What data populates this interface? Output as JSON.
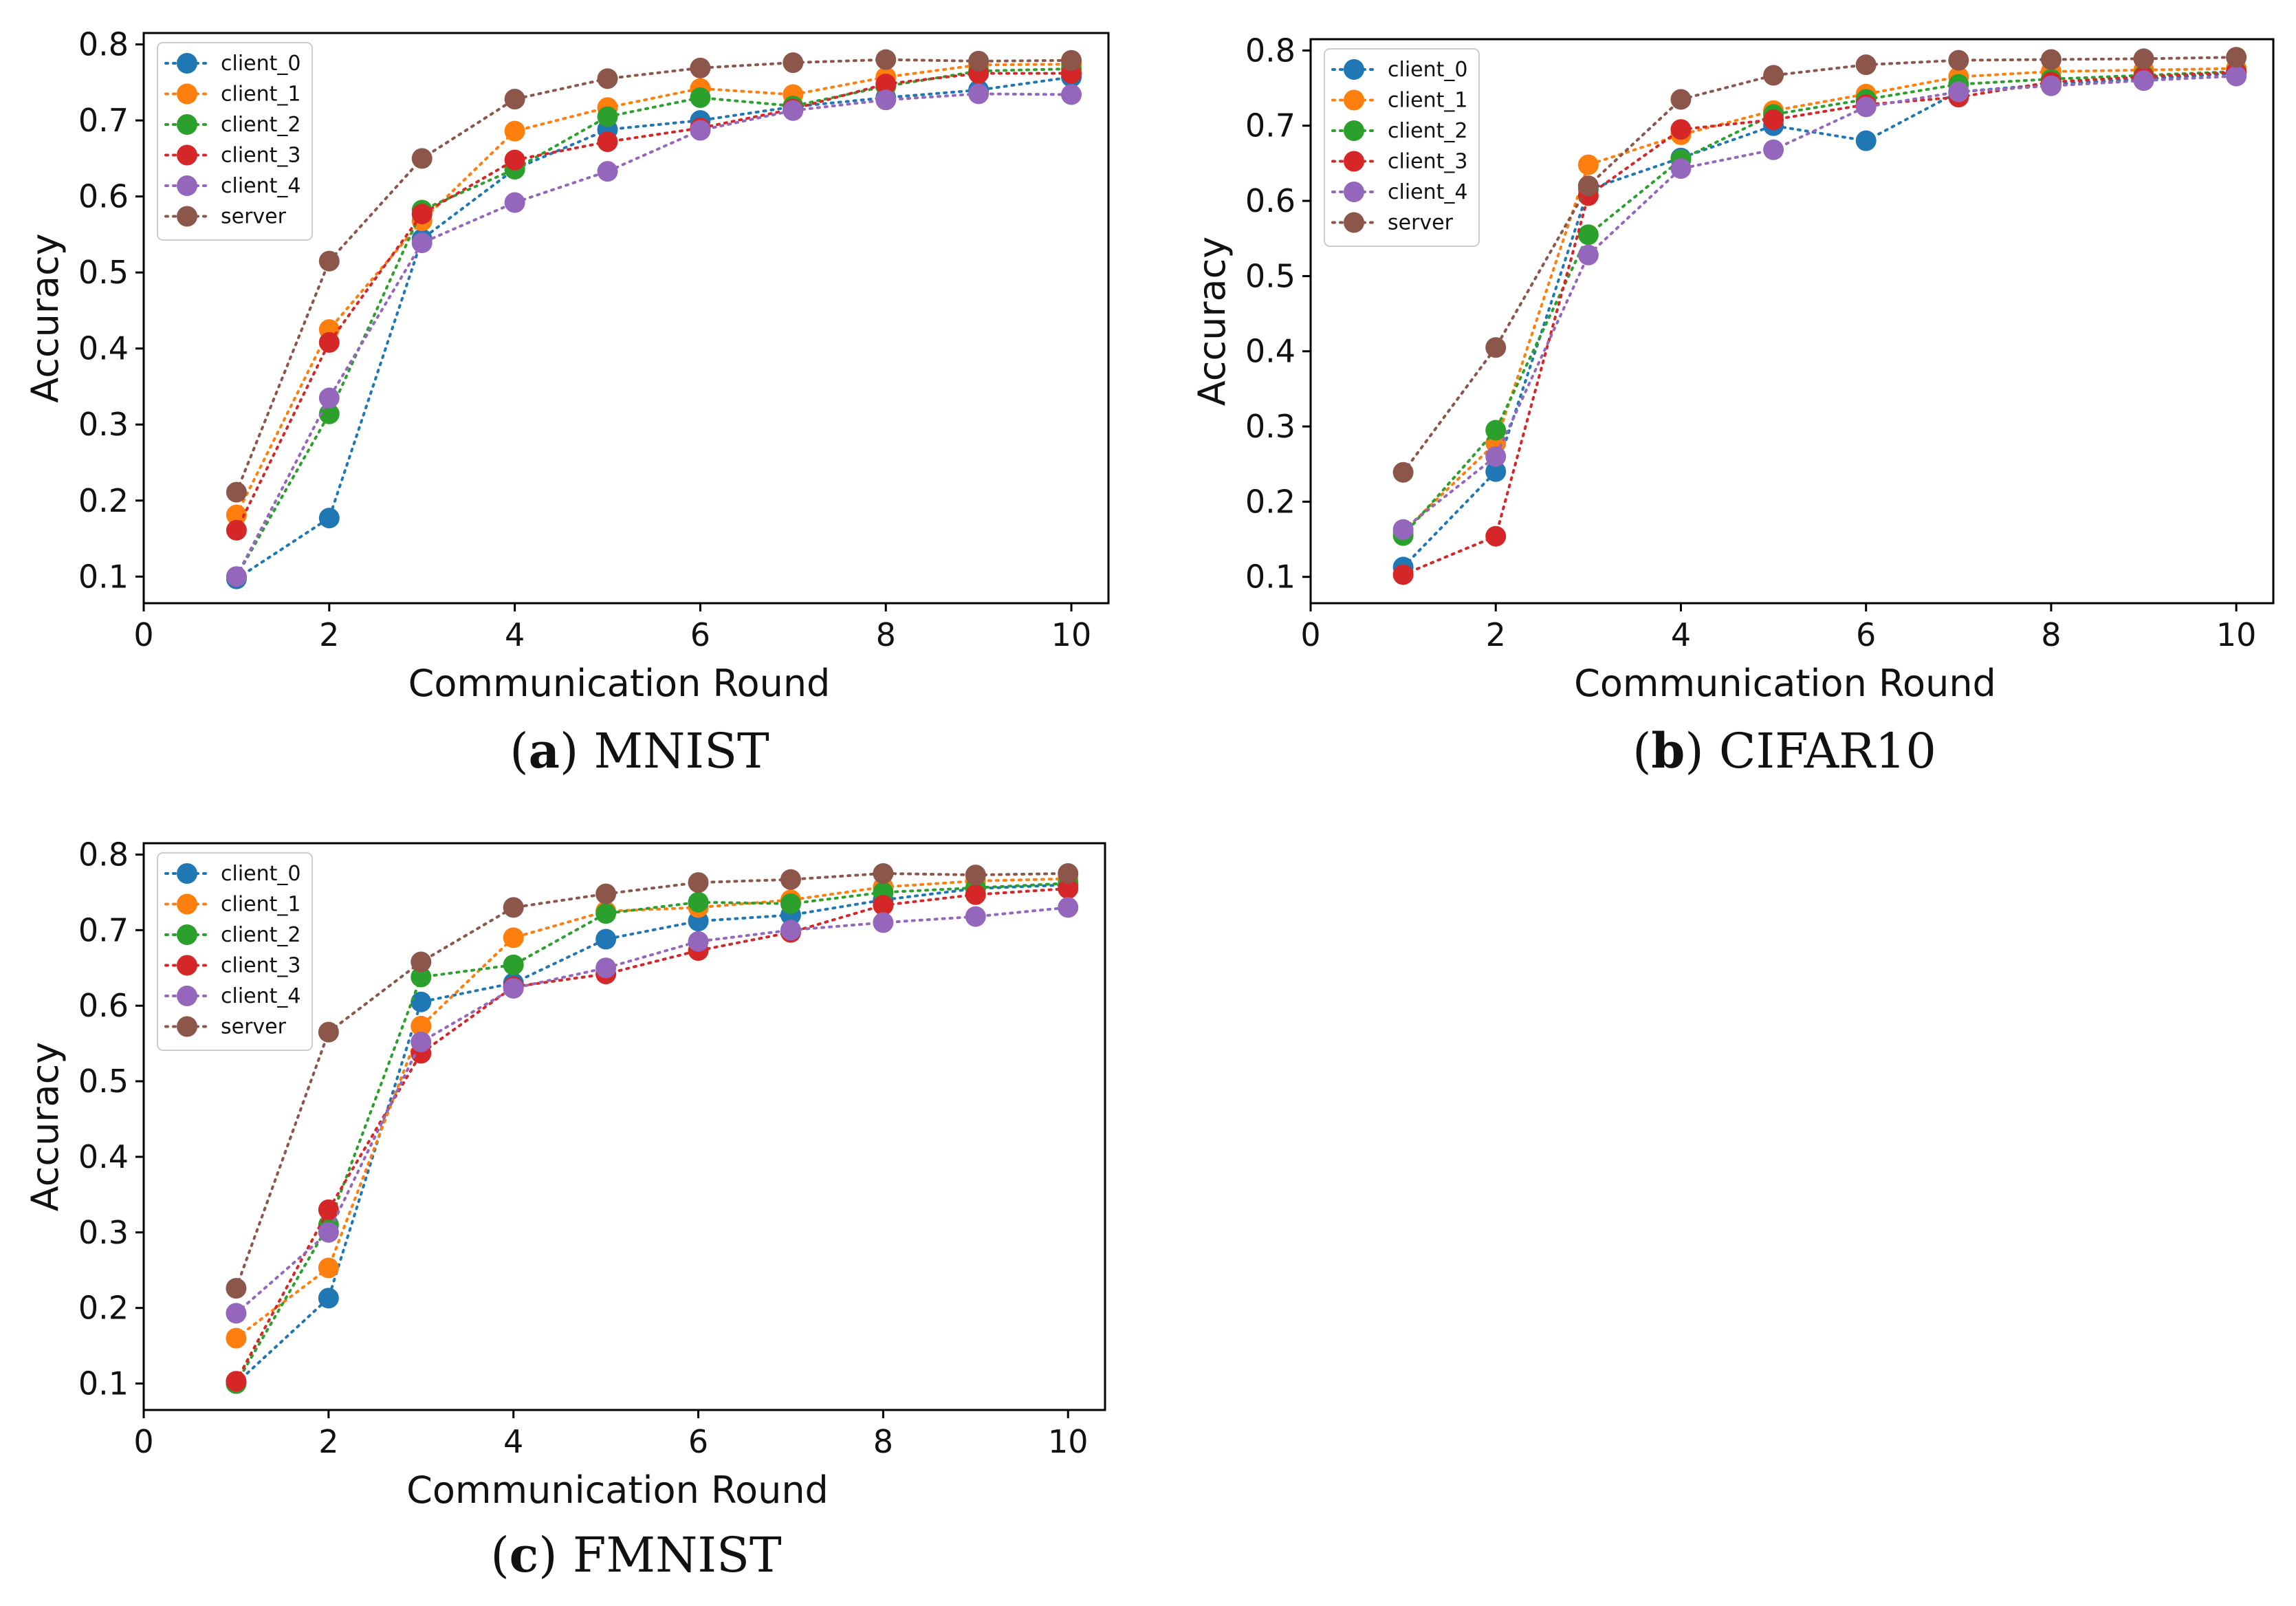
{
  "chart_data": [
    {
      "type": "line",
      "title": "",
      "caption": {
        "letter": "a",
        "text": "MNIST"
      },
      "xlabel": "Communication Round",
      "ylabel": "Accuracy",
      "xlim": [
        0,
        10.4
      ],
      "ylim": [
        0.065,
        0.815
      ],
      "xticks": [
        0,
        2,
        4,
        6,
        8,
        10
      ],
      "yticks": [
        0.1,
        0.2,
        0.3,
        0.4,
        0.5,
        0.6,
        0.7,
        0.8
      ],
      "legend_position": "top-left",
      "x": [
        1,
        2,
        3,
        4,
        5,
        6,
        7,
        8,
        9,
        10
      ],
      "series": [
        {
          "name": "client_0",
          "color": "#1f77b4",
          "values": [
            0.097,
            0.177,
            0.544,
            0.636,
            0.688,
            0.7,
            0.718,
            0.73,
            0.74,
            0.757
          ]
        },
        {
          "name": "client_1",
          "color": "#ff7f0e",
          "values": [
            0.181,
            0.425,
            0.568,
            0.686,
            0.717,
            0.742,
            0.734,
            0.757,
            0.773,
            0.774
          ]
        },
        {
          "name": "client_2",
          "color": "#2ca02c",
          "values": [
            0.1,
            0.314,
            0.582,
            0.636,
            0.705,
            0.73,
            0.719,
            0.745,
            0.765,
            0.768
          ]
        },
        {
          "name": "client_3",
          "color": "#d62728",
          "values": [
            0.161,
            0.408,
            0.577,
            0.648,
            0.672,
            0.69,
            0.715,
            0.748,
            0.762,
            0.762
          ]
        },
        {
          "name": "client_4",
          "color": "#9467bd",
          "values": [
            0.1,
            0.335,
            0.539,
            0.592,
            0.633,
            0.687,
            0.713,
            0.727,
            0.735,
            0.734
          ]
        },
        {
          "name": "server",
          "color": "#8c564b",
          "values": [
            0.211,
            0.515,
            0.65,
            0.728,
            0.755,
            0.769,
            0.776,
            0.78,
            0.778,
            0.779
          ]
        }
      ]
    },
    {
      "type": "line",
      "title": "",
      "caption": {
        "letter": "b",
        "text": "CIFAR10"
      },
      "xlabel": "Communication Round",
      "ylabel": "Accuracy",
      "xlim": [
        0,
        10.4
      ],
      "ylim": [
        0.065,
        0.815
      ],
      "xticks": [
        0,
        2,
        4,
        6,
        8,
        10
      ],
      "yticks": [
        0.1,
        0.2,
        0.3,
        0.4,
        0.5,
        0.6,
        0.7,
        0.8
      ],
      "legend_position": "top-left",
      "x": [
        1,
        2,
        3,
        4,
        5,
        6,
        7,
        8,
        9,
        10
      ],
      "series": [
        {
          "name": "client_0",
          "color": "#1f77b4",
          "values": [
            0.113,
            0.24,
            0.615,
            0.657,
            0.7,
            0.68,
            0.745,
            0.755,
            0.762,
            0.77
          ]
        },
        {
          "name": "client_1",
          "color": "#ff7f0e",
          "values": [
            0.16,
            0.278,
            0.648,
            0.688,
            0.72,
            0.742,
            0.765,
            0.772,
            0.774,
            0.776
          ]
        },
        {
          "name": "client_2",
          "color": "#2ca02c",
          "values": [
            0.155,
            0.295,
            0.555,
            0.655,
            0.715,
            0.735,
            0.755,
            0.762,
            0.767,
            0.772
          ]
        },
        {
          "name": "client_3",
          "color": "#d62728",
          "values": [
            0.103,
            0.154,
            0.607,
            0.695,
            0.708,
            0.728,
            0.738,
            0.758,
            0.765,
            0.771
          ]
        },
        {
          "name": "client_4",
          "color": "#9467bd",
          "values": [
            0.163,
            0.26,
            0.528,
            0.643,
            0.668,
            0.725,
            0.745,
            0.753,
            0.76,
            0.766
          ]
        },
        {
          "name": "server",
          "color": "#8c564b",
          "values": [
            0.239,
            0.405,
            0.62,
            0.735,
            0.767,
            0.781,
            0.787,
            0.788,
            0.789,
            0.791
          ]
        }
      ]
    },
    {
      "type": "line",
      "title": "",
      "caption": {
        "letter": "c",
        "text": "FMNIST"
      },
      "xlabel": "Communication Round",
      "ylabel": "Accuracy",
      "xlim": [
        0,
        10.4
      ],
      "ylim": [
        0.065,
        0.815
      ],
      "xticks": [
        0,
        2,
        4,
        6,
        8,
        10
      ],
      "yticks": [
        0.1,
        0.2,
        0.3,
        0.4,
        0.5,
        0.6,
        0.7,
        0.8
      ],
      "legend_position": "top-left",
      "x": [
        1,
        2,
        3,
        4,
        5,
        6,
        7,
        8,
        9,
        10
      ],
      "series": [
        {
          "name": "client_0",
          "color": "#1f77b4",
          "values": [
            0.1,
            0.213,
            0.605,
            0.63,
            0.688,
            0.712,
            0.72,
            0.74,
            0.755,
            0.76
          ]
        },
        {
          "name": "client_1",
          "color": "#ff7f0e",
          "values": [
            0.16,
            0.253,
            0.573,
            0.69,
            0.725,
            0.73,
            0.74,
            0.757,
            0.765,
            0.768
          ]
        },
        {
          "name": "client_2",
          "color": "#2ca02c",
          "values": [
            0.1,
            0.31,
            0.638,
            0.654,
            0.722,
            0.737,
            0.735,
            0.75,
            0.756,
            0.762
          ]
        },
        {
          "name": "client_3",
          "color": "#d62728",
          "values": [
            0.103,
            0.33,
            0.537,
            0.625,
            0.642,
            0.673,
            0.697,
            0.733,
            0.747,
            0.755
          ]
        },
        {
          "name": "client_4",
          "color": "#9467bd",
          "values": [
            0.193,
            0.3,
            0.552,
            0.623,
            0.65,
            0.685,
            0.7,
            0.71,
            0.718,
            0.73
          ]
        },
        {
          "name": "server",
          "color": "#8c564b",
          "values": [
            0.226,
            0.565,
            0.658,
            0.73,
            0.748,
            0.763,
            0.767,
            0.775,
            0.773,
            0.775
          ]
        }
      ]
    }
  ]
}
